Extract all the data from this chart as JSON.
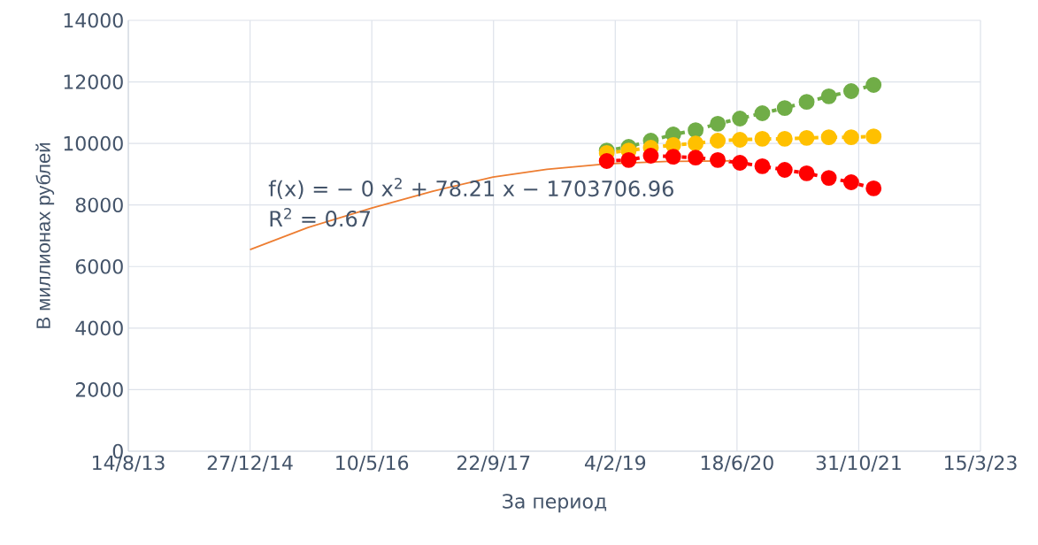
{
  "chart_data": {
    "type": "line",
    "xlabel": "За период",
    "ylabel": "В миллионах рублей",
    "xlim": [
      "2013-08-14",
      "2023-03-15"
    ],
    "xticks": [
      {
        "value": "2013-08-14",
        "label": "14/8/13"
      },
      {
        "value": "2014-12-27",
        "label": "27/12/14"
      },
      {
        "value": "2016-05-10",
        "label": "10/5/16"
      },
      {
        "value": "2017-09-22",
        "label": "22/9/17"
      },
      {
        "value": "2019-02-04",
        "label": "4/2/19"
      },
      {
        "value": "2020-06-18",
        "label": "18/6/20"
      },
      {
        "value": "2021-10-31",
        "label": "31/10/21"
      },
      {
        "value": "2023-03-15",
        "label": "15/3/23"
      }
    ],
    "ylim": [
      0,
      14000
    ],
    "yticks": [
      0,
      2000,
      4000,
      6000,
      8000,
      10000,
      12000,
      14000
    ],
    "grid": true,
    "x": [
      "2018-12-31",
      "2019-03-31",
      "2019-06-30",
      "2019-09-30",
      "2019-12-31",
      "2020-03-31",
      "2020-06-30",
      "2020-09-30",
      "2020-12-31",
      "2021-03-31",
      "2021-06-30",
      "2021-09-30",
      "2021-12-31"
    ],
    "series": [
      {
        "color": "#70ad47",
        "marker": "circle",
        "line_style": "dotted",
        "values": [
          9770,
          9890,
          10090,
          10290,
          10430,
          10640,
          10810,
          10980,
          11150,
          11350,
          11530,
          11700,
          11900
        ]
      },
      {
        "color": "#ffc000",
        "marker": "circle",
        "line_style": "dotted",
        "values": [
          9690,
          9770,
          9860,
          9950,
          10000,
          10090,
          10120,
          10150,
          10150,
          10180,
          10200,
          10200,
          10230
        ]
      },
      {
        "color": "#ff0000",
        "marker": "circle",
        "line_style": "dotted",
        "values": [
          9430,
          9460,
          9600,
          9570,
          9540,
          9460,
          9370,
          9260,
          9140,
          9030,
          8880,
          8740,
          8540
        ]
      },
      {
        "color": "#ed7d31",
        "marker": "none",
        "line_style": "solid",
        "x": [
          "2014-12-27",
          "2015-08-22",
          "2016-05-10",
          "2017-01-16",
          "2017-09-20",
          "2018-04-29",
          "2019-01-04",
          "2019-09-13",
          "2020-05-20"
        ],
        "values": [
          6550,
          7270,
          7900,
          8450,
          8910,
          9160,
          9340,
          9420,
          9430
        ]
      }
    ],
    "annotations": [
      "f(x) = − 0 x$^{2}$ + 78.21 x − 1703706.96",
      "R$^{2}$ = 0.67"
    ]
  }
}
